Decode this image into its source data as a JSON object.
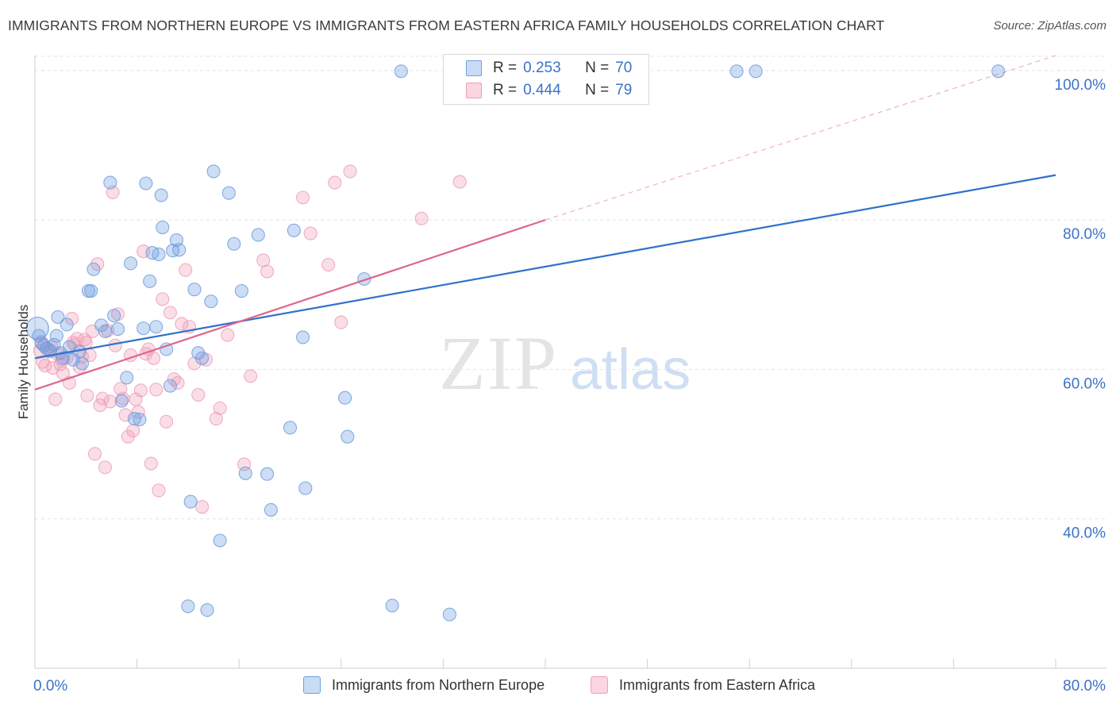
{
  "title": "IMMIGRANTS FROM NORTHERN EUROPE VS IMMIGRANTS FROM EASTERN AFRICA FAMILY HOUSEHOLDS CORRELATION CHART",
  "source": "Source: ZipAtlas.com",
  "watermark": {
    "zip": "ZIP",
    "atlas": "atlas"
  },
  "legend": {
    "blue": {
      "r_label": "R =",
      "r_value": "0.253",
      "n_label": "N =",
      "n_value": "70"
    },
    "pink": {
      "r_label": "R =",
      "r_value": "0.444",
      "n_label": "N =",
      "n_value": "79"
    }
  },
  "colors": {
    "blue": "#6f9fe0",
    "blue_line": "#2f72cc",
    "pink": "#f0a0b8",
    "pink_line": "#e0658e",
    "axis_text": "#3b72c8"
  },
  "chart_data": {
    "type": "scatter",
    "title": "IMMIGRANTS FROM NORTHERN EUROPE VS IMMIGRANTS FROM EASTERN AFRICA FAMILY HOUSEHOLDS CORRELATION CHART",
    "xlabel": "",
    "ylabel": "Family Households",
    "xlim": [
      0,
      80
    ],
    "ylim": [
      20,
      102
    ],
    "x_tick_labels": [
      "0.0%",
      "80.0%"
    ],
    "y_ticks": [
      40,
      60,
      80,
      100
    ],
    "y_tick_labels": [
      "40.0%",
      "60.0%",
      "80.0%",
      "100.0%"
    ],
    "legend_position": "top-center",
    "series": [
      {
        "name": "Immigrants from Northern Europe",
        "color": "#6f9fe0",
        "trend": {
          "x": [
            0,
            80
          ],
          "y": [
            61.5,
            86
          ]
        },
        "points": [
          [
            0.3,
            64.5
          ],
          [
            0.5,
            63.5
          ],
          [
            0.7,
            63.2
          ],
          [
            0.9,
            62.8
          ],
          [
            1.2,
            62.5
          ],
          [
            1.5,
            63.3
          ],
          [
            1.7,
            64.5
          ],
          [
            1.8,
            67
          ],
          [
            2.0,
            62.2
          ],
          [
            2.2,
            61.5
          ],
          [
            2.5,
            66
          ],
          [
            2.7,
            63
          ],
          [
            3.0,
            61.3
          ],
          [
            3.5,
            62.4
          ],
          [
            3.7,
            60.8
          ],
          [
            4.2,
            70.5
          ],
          [
            4.4,
            70.5
          ],
          [
            4.6,
            73.4
          ],
          [
            5.2,
            65.9
          ],
          [
            5.5,
            65.1
          ],
          [
            5.9,
            85
          ],
          [
            6.2,
            67.2
          ],
          [
            6.5,
            65.4
          ],
          [
            6.8,
            55.8
          ],
          [
            7.2,
            58.9
          ],
          [
            7.5,
            74.2
          ],
          [
            7.8,
            53.4
          ],
          [
            8.2,
            53.3
          ],
          [
            8.5,
            65.5
          ],
          [
            8.7,
            84.9
          ],
          [
            9.0,
            71.8
          ],
          [
            9.2,
            75.6
          ],
          [
            9.5,
            65.7
          ],
          [
            9.7,
            75.4
          ],
          [
            9.9,
            83.3
          ],
          [
            10.0,
            79
          ],
          [
            10.3,
            62.7
          ],
          [
            10.6,
            57.8
          ],
          [
            10.8,
            75.9
          ],
          [
            11.1,
            77.3
          ],
          [
            11.3,
            76
          ],
          [
            12.5,
            70.7
          ],
          [
            12.8,
            62.2
          ],
          [
            13.1,
            61.5
          ],
          [
            12.2,
            42.3
          ],
          [
            13.5,
            27.8
          ],
          [
            13.8,
            69.1
          ],
          [
            14.0,
            86.5
          ],
          [
            14.5,
            37.1
          ],
          [
            15.2,
            83.6
          ],
          [
            15.6,
            76.8
          ],
          [
            16.2,
            70.5
          ],
          [
            16.5,
            46.1
          ],
          [
            17.5,
            78
          ],
          [
            18.2,
            46
          ],
          [
            18.5,
            41.2
          ],
          [
            20.0,
            52.2
          ],
          [
            20.3,
            78.6
          ],
          [
            21.0,
            64.3
          ],
          [
            21.2,
            44.1
          ],
          [
            24.3,
            56.2
          ],
          [
            24.5,
            51
          ],
          [
            25.8,
            72.1
          ],
          [
            28.0,
            28.4
          ],
          [
            28.7,
            99.9
          ],
          [
            32.5,
            27.2
          ],
          [
            12.0,
            28.3
          ],
          [
            55.0,
            99.9
          ],
          [
            56.5,
            99.9
          ],
          [
            75.5,
            99.9
          ]
        ]
      },
      {
        "name": "Immigrants from Eastern Africa",
        "color": "#f0a0b8",
        "trend": {
          "x": [
            0,
            40
          ],
          "y": [
            57.3,
            80
          ]
        },
        "trend_extension": {
          "x": [
            40,
            80
          ],
          "y": [
            80,
            102
          ]
        },
        "points": [
          [
            0.4,
            62.5
          ],
          [
            0.6,
            61
          ],
          [
            0.8,
            60.5
          ],
          [
            1.0,
            62.8
          ],
          [
            1.2,
            62.4
          ],
          [
            1.4,
            60.2
          ],
          [
            1.6,
            56
          ],
          [
            1.8,
            62
          ],
          [
            2.0,
            60.7
          ],
          [
            2.2,
            59.5
          ],
          [
            2.5,
            61.6
          ],
          [
            2.7,
            58.2
          ],
          [
            2.9,
            66.8
          ],
          [
            3.1,
            63.3
          ],
          [
            3.3,
            64.1
          ],
          [
            3.5,
            60.3
          ],
          [
            3.7,
            61.7
          ],
          [
            3.9,
            64
          ],
          [
            4.1,
            56.5
          ],
          [
            4.3,
            61.9
          ],
          [
            4.5,
            65.1
          ],
          [
            4.7,
            48.7
          ],
          [
            4.9,
            74.1
          ],
          [
            5.1,
            55.2
          ],
          [
            5.3,
            56.1
          ],
          [
            5.5,
            46.9
          ],
          [
            5.7,
            65.2
          ],
          [
            5.9,
            55.7
          ],
          [
            6.1,
            83.7
          ],
          [
            6.3,
            63.2
          ],
          [
            6.5,
            67.4
          ],
          [
            6.7,
            57.4
          ],
          [
            6.9,
            56.1
          ],
          [
            7.1,
            53.9
          ],
          [
            7.3,
            51
          ],
          [
            7.5,
            61.9
          ],
          [
            7.7,
            51.8
          ],
          [
            7.9,
            56
          ],
          [
            8.1,
            54.3
          ],
          [
            8.3,
            57.2
          ],
          [
            8.5,
            75.8
          ],
          [
            8.7,
            62.1
          ],
          [
            8.9,
            62.7
          ],
          [
            9.1,
            47.4
          ],
          [
            9.3,
            61.5
          ],
          [
            9.5,
            57.3
          ],
          [
            9.7,
            43.8
          ],
          [
            10.0,
            69.4
          ],
          [
            10.3,
            53
          ],
          [
            10.6,
            67.6
          ],
          [
            10.9,
            58.7
          ],
          [
            11.2,
            58.2
          ],
          [
            11.5,
            66.1
          ],
          [
            11.8,
            73.3
          ],
          [
            12.1,
            65.7
          ],
          [
            12.5,
            60.8
          ],
          [
            12.8,
            56.6
          ],
          [
            13.1,
            41.6
          ],
          [
            13.4,
            61.3
          ],
          [
            14.2,
            53.4
          ],
          [
            14.5,
            54.8
          ],
          [
            15.1,
            64.6
          ],
          [
            16.4,
            47.3
          ],
          [
            16.9,
            59.1
          ],
          [
            17.9,
            74.6
          ],
          [
            18.2,
            73.1
          ],
          [
            21.6,
            78.2
          ],
          [
            21.0,
            83
          ],
          [
            23.0,
            74
          ],
          [
            23.5,
            85
          ],
          [
            24.0,
            66.3
          ],
          [
            24.7,
            86.5
          ],
          [
            30.3,
            80.2
          ],
          [
            33.3,
            85.1
          ],
          [
            0.5,
            63.7
          ],
          [
            1.3,
            63
          ],
          [
            2.1,
            61.3
          ],
          [
            3.0,
            63.6
          ],
          [
            4.0,
            63.6
          ]
        ]
      }
    ]
  }
}
